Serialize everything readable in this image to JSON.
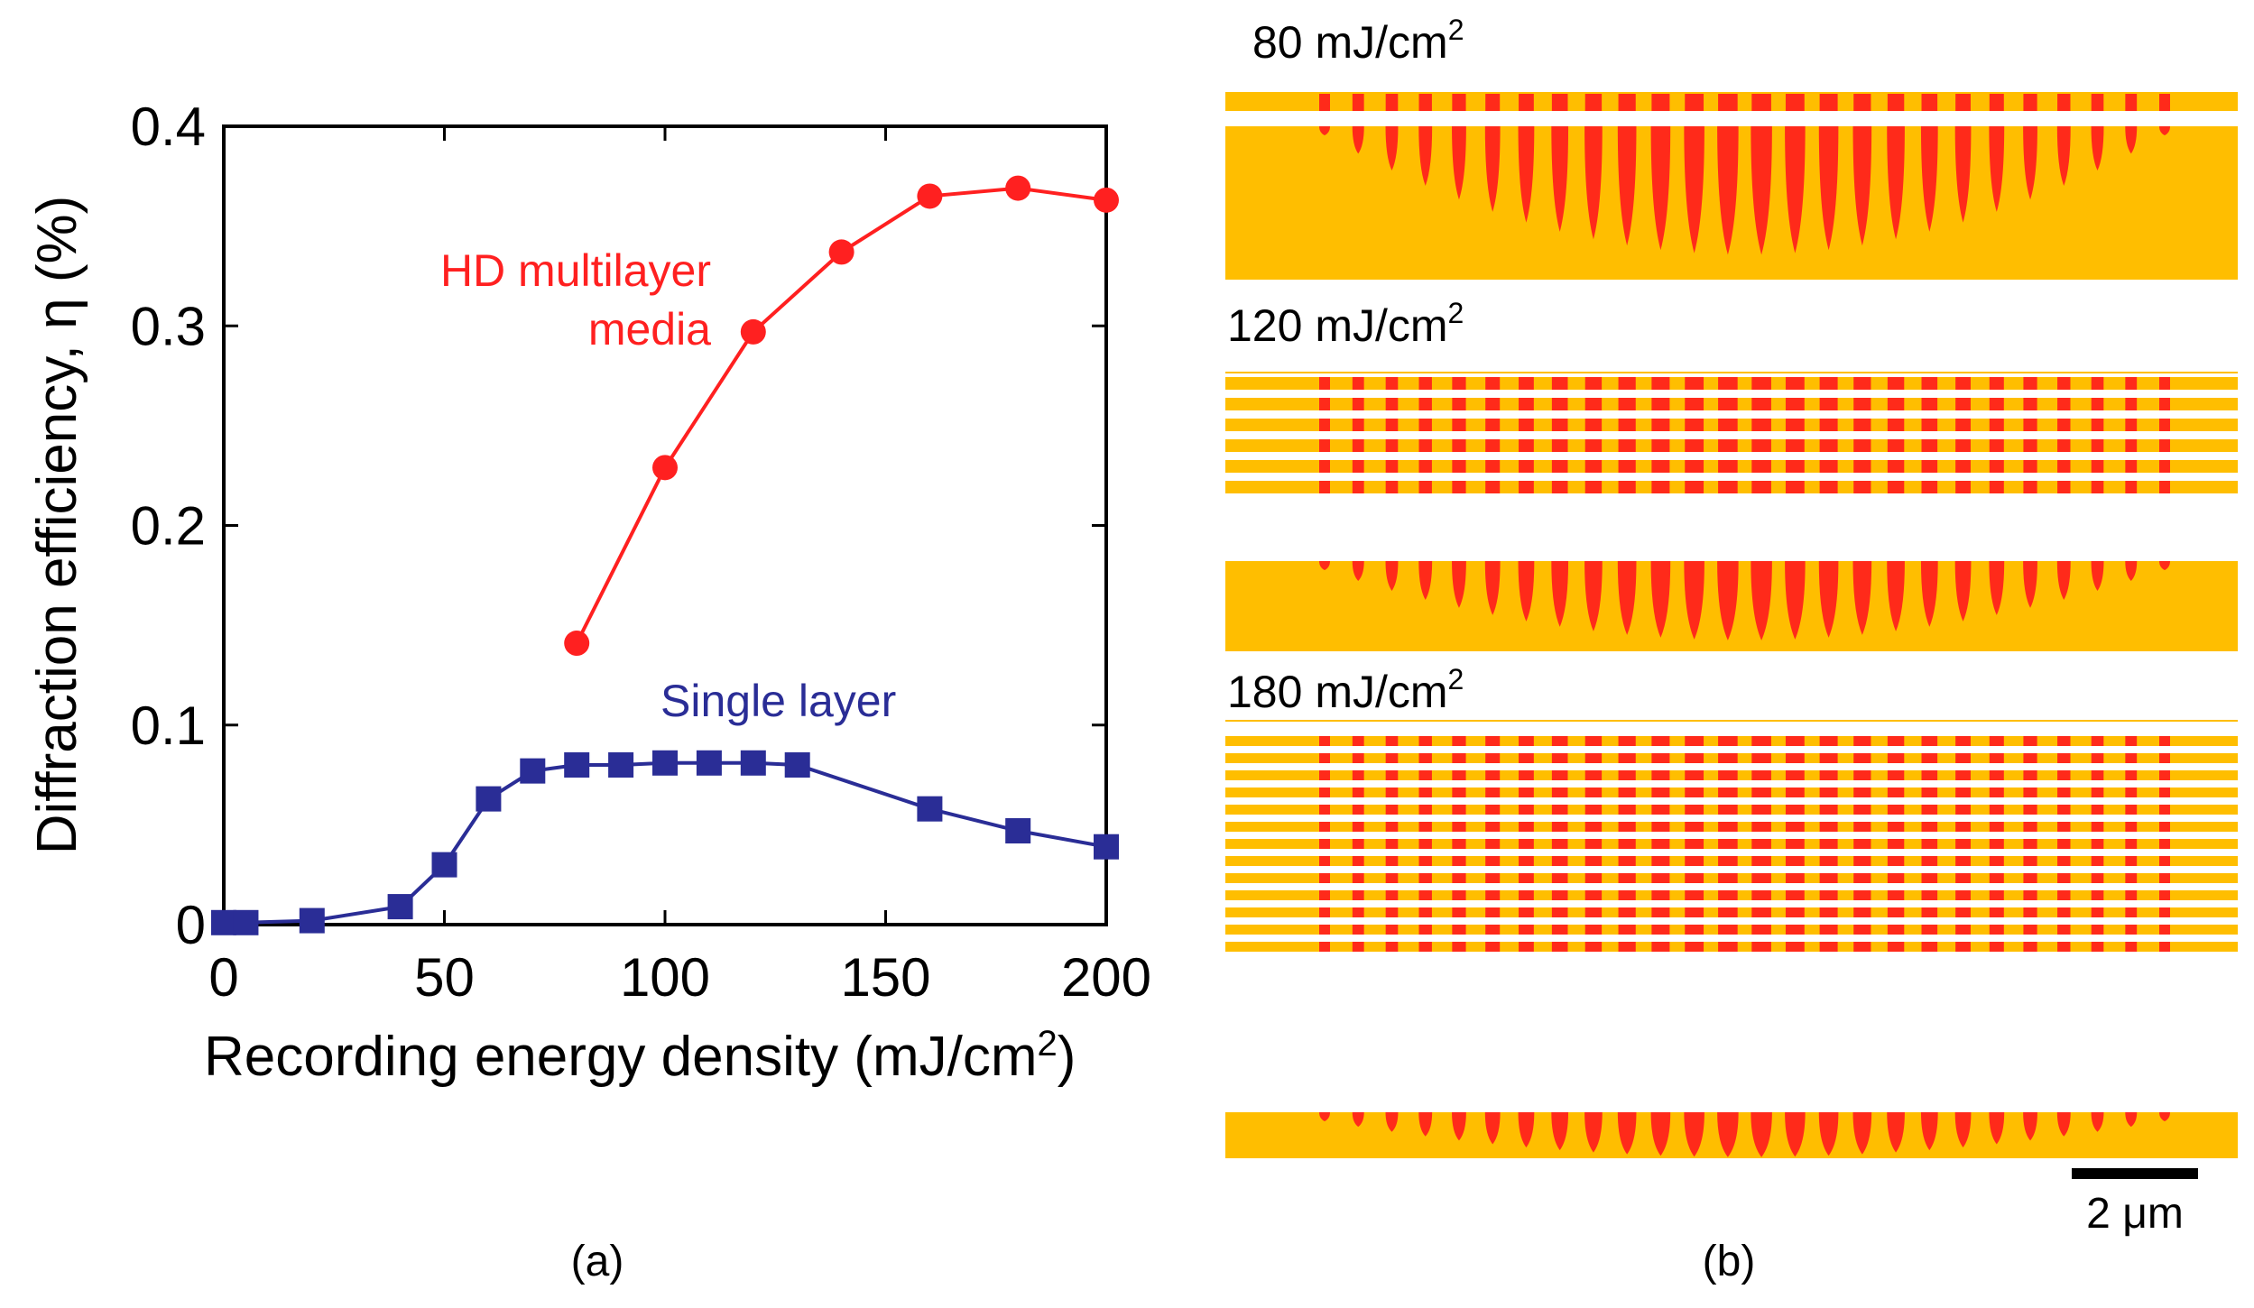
{
  "chart_data": {
    "type": "line",
    "xlabel": "Recording energy density (mJ/cm²)",
    "xlabel_main": "Recording energy density (mJ/cm",
    "xlabel_sup": "2",
    "xlabel_close": ")",
    "ylabel": "Diffraction efficiency, η (%)",
    "xlim": [
      0,
      200
    ],
    "ylim": [
      0,
      0.4
    ],
    "xticks": [
      0,
      50,
      100,
      150,
      200
    ],
    "yticks": [
      0,
      0.1,
      0.2,
      0.3,
      0.4
    ],
    "xtick_labels": [
      "0",
      "50",
      "100",
      "150",
      "200"
    ],
    "ytick_labels": [
      "0",
      "0.1",
      "0.2",
      "0.3",
      "0.4"
    ],
    "series": [
      {
        "name": "HD multilayer media",
        "label_lines": [
          "HD multilayer",
          "media"
        ],
        "color": "#ff2020",
        "marker": "circle",
        "x": [
          80,
          100,
          120,
          140,
          160,
          180,
          200
        ],
        "values": [
          0.141,
          0.229,
          0.297,
          0.337,
          0.365,
          0.369,
          0.363
        ]
      },
      {
        "name": "Single layer",
        "label_lines": [
          "Single layer"
        ],
        "color": "#2a2d96",
        "marker": "square",
        "x": [
          0,
          5,
          20,
          40,
          50,
          60,
          70,
          80,
          90,
          100,
          110,
          120,
          130,
          160,
          180,
          200
        ],
        "values": [
          0.001,
          0.001,
          0.002,
          0.009,
          0.03,
          0.063,
          0.077,
          0.08,
          0.08,
          0.081,
          0.081,
          0.081,
          0.08,
          0.058,
          0.047,
          0.039
        ]
      }
    ]
  },
  "panel_a_caption": "(a)",
  "panel_b": {
    "caption": "(b)",
    "scale_bar_label": "2 μm",
    "colors": {
      "background": "#ffbe00",
      "grating": "#ff2a1a",
      "gap": "#ffffff"
    },
    "simulations": [
      {
        "label_main": "80 mJ/cm",
        "label_sup": "2",
        "fringe_layers": 1
      },
      {
        "label_main": "120 mJ/cm",
        "label_sup": "2",
        "fringe_layers": 6
      },
      {
        "label_main": "180 mJ/cm",
        "label_sup": "2",
        "fringe_layers": 13
      }
    ]
  }
}
